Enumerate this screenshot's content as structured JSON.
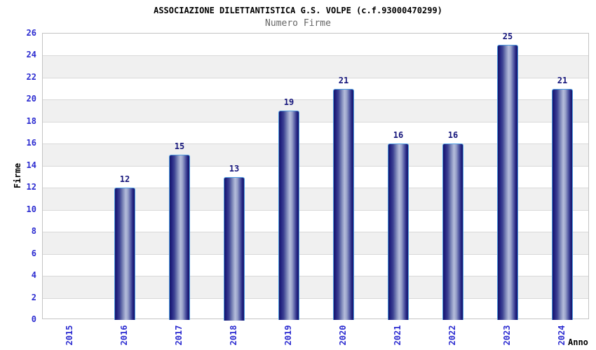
{
  "header": {
    "title": "ASSOCIAZIONE DILETTANTISTICA G.S. VOLPE (c.f.93000470299)",
    "subtitle": "Numero Firme"
  },
  "chart_data": {
    "type": "bar",
    "title": "ASSOCIAZIONE DILETTANTISTICA G.S. VOLPE (c.f.93000470299)",
    "subtitle": "Numero Firme",
    "xlabel": "Anno",
    "ylabel": "Firme",
    "categories": [
      "2015",
      "2016",
      "2017",
      "2018",
      "2019",
      "2020",
      "2021",
      "2022",
      "2023",
      "2024"
    ],
    "values": [
      null,
      12,
      15,
      13,
      19,
      21,
      16,
      16,
      25,
      21
    ],
    "bar_value_labels": [
      "",
      "12",
      "15",
      "13",
      "19",
      "21",
      "16",
      "16",
      "25",
      "21"
    ],
    "ylim": [
      0,
      26
    ],
    "ytick_step": 2,
    "yticks": [
      0,
      2,
      4,
      6,
      8,
      10,
      12,
      14,
      16,
      18,
      20,
      22,
      24,
      26
    ],
    "grid": "horizontal",
    "alternating_bands": true,
    "legend_position": "none"
  },
  "colors": {
    "tick_label_blue": "#2b2bd0",
    "value_label_navy": "#15157b",
    "bar_gradient_dark": "#15156a",
    "bar_gradient_light": "#b5bddb",
    "bar_border": "#4d9be0",
    "band_gray": "#f0f0f0",
    "gridline": "#d8d8d8",
    "plot_border": "#c4c4c4",
    "title_color": "#000000",
    "subtitle_color": "#666666"
  }
}
